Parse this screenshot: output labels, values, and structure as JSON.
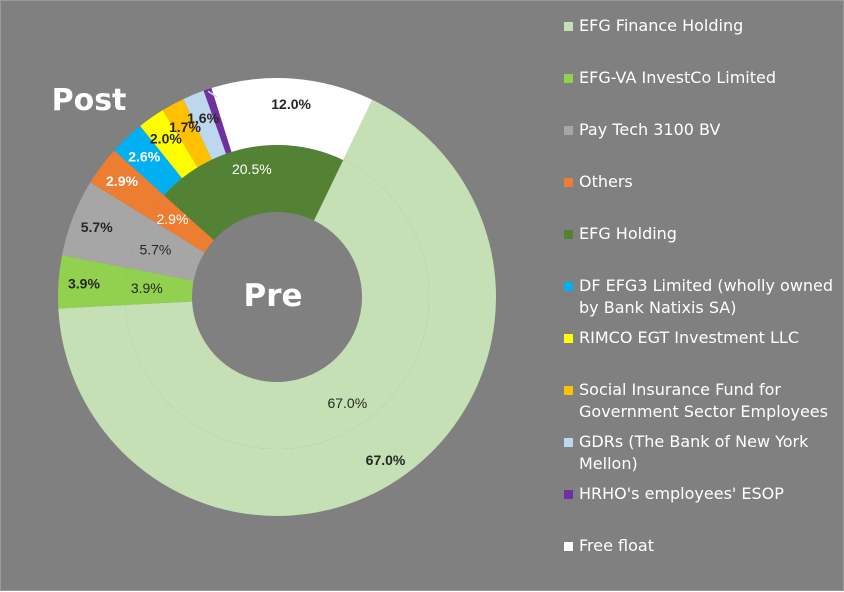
{
  "chart_data": {
    "type": "donut",
    "rings": [
      {
        "name": "Post",
        "slices": [
          {
            "label": "EFG Finance Holding",
            "value": 67.0,
            "display": "67.0%",
            "color": "#c5e0b4"
          },
          {
            "label": "EFG-VA InvestCo Limited",
            "value": 3.9,
            "display": "3.9%",
            "color": "#92d050"
          },
          {
            "label": "Pay Tech 3100 BV",
            "value": 5.7,
            "display": "5.7%",
            "color": "#a6a6a6"
          },
          {
            "label": "Others",
            "value": 2.9,
            "display": "2.9%",
            "color": "#ed7d31"
          },
          {
            "label": "DF EFG3 Limited (wholly owned by Bank Natixis SA)",
            "value": 2.6,
            "display": "2.6%",
            "color": "#00b0f0"
          },
          {
            "label": "RIMCO EGT Investment LLC",
            "value": 2.0,
            "display": "2.0%",
            "color": "#ffff00"
          },
          {
            "label": "Social Insurance Fund for Government Sector Employees",
            "value": 1.7,
            "display": "1.7%",
            "color": "#ffc000"
          },
          {
            "label": "GDRs (The Bank of New York Mellon)",
            "value": 1.6,
            "display": "1.6%",
            "color": "#bdd7ee"
          },
          {
            "label": "HRHO's employees' ESOP",
            "value": 0.6,
            "display": "0.6%",
            "color": "#7030a0"
          },
          {
            "label": "Free float",
            "value": 12.0,
            "display": "12.0%",
            "color": "#ffffff"
          }
        ]
      },
      {
        "name": "Pre",
        "slices": [
          {
            "label": "EFG Finance Holding",
            "value": 67.0,
            "display": "67.0%",
            "color": "#c5e0b4"
          },
          {
            "label": "EFG-VA InvestCo Limited",
            "value": 3.9,
            "display": "3.9%",
            "color": "#92d050"
          },
          {
            "label": "Pay Tech 3100 BV",
            "value": 5.7,
            "display": "5.7%",
            "color": "#a6a6a6"
          },
          {
            "label": "Others",
            "value": 2.9,
            "display": "2.9%",
            "color": "#ed7d31"
          },
          {
            "label": "EFG Holding",
            "value": 20.5,
            "display": "20.5%",
            "color": "#548235"
          }
        ]
      }
    ],
    "legend": [
      {
        "label": "EFG Finance Holding",
        "color": "#c5e0b4"
      },
      {
        "label": "EFG-VA InvestCo Limited",
        "color": "#92d050"
      },
      {
        "label": "Pay Tech 3100 BV",
        "color": "#a6a6a6"
      },
      {
        "label": "Others",
        "color": "#ed7d31"
      },
      {
        "label": "EFG Holding",
        "color": "#548235"
      },
      {
        "label": "DF EFG3 Limited (wholly owned by Bank Natixis SA)",
        "color": "#00b0f0"
      },
      {
        "label": "RIMCO EGT Investment LLC",
        "color": "#ffff00"
      },
      {
        "label": "Social Insurance Fund for Government Sector Employees",
        "color": "#ffc000"
      },
      {
        "label": "GDRs (The Bank of New York Mellon)",
        "color": "#bdd7ee"
      },
      {
        "label": "HRHO's employees' ESOP",
        "color": "#7030a0"
      },
      {
        "label": "Free float",
        "color": "#ffffff"
      }
    ],
    "legend_position": "right",
    "background_color": "#808080"
  }
}
